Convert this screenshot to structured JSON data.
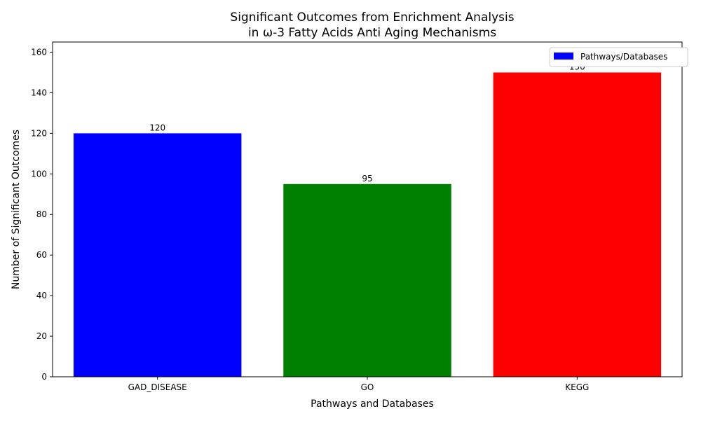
{
  "chart_data": {
    "type": "bar",
    "title_lines": [
      "Significant Outcomes from Enrichment Analysis",
      "in ω-3 Fatty Acids Anti Aging Mechanisms"
    ],
    "xlabel": "Pathways and Databases",
    "ylabel": "Number of Significant Outcomes",
    "categories": [
      "GAD_DISEASE",
      "GO",
      "KEGG"
    ],
    "values": [
      120,
      95,
      150
    ],
    "value_labels": [
      "120",
      "95",
      "150"
    ],
    "colors": [
      "#0000ff",
      "#008000",
      "#ff0000"
    ],
    "ylim": [
      0,
      165
    ],
    "yticks": [
      0,
      20,
      40,
      60,
      80,
      100,
      120,
      140,
      160
    ],
    "ytick_labels": [
      "0",
      "20",
      "40",
      "60",
      "80",
      "100",
      "120",
      "140",
      "160"
    ],
    "grid": false,
    "legend": {
      "position": "top-right",
      "entries": [
        {
          "label": "Pathways/Databases",
          "color": "#0000ff"
        }
      ]
    }
  }
}
